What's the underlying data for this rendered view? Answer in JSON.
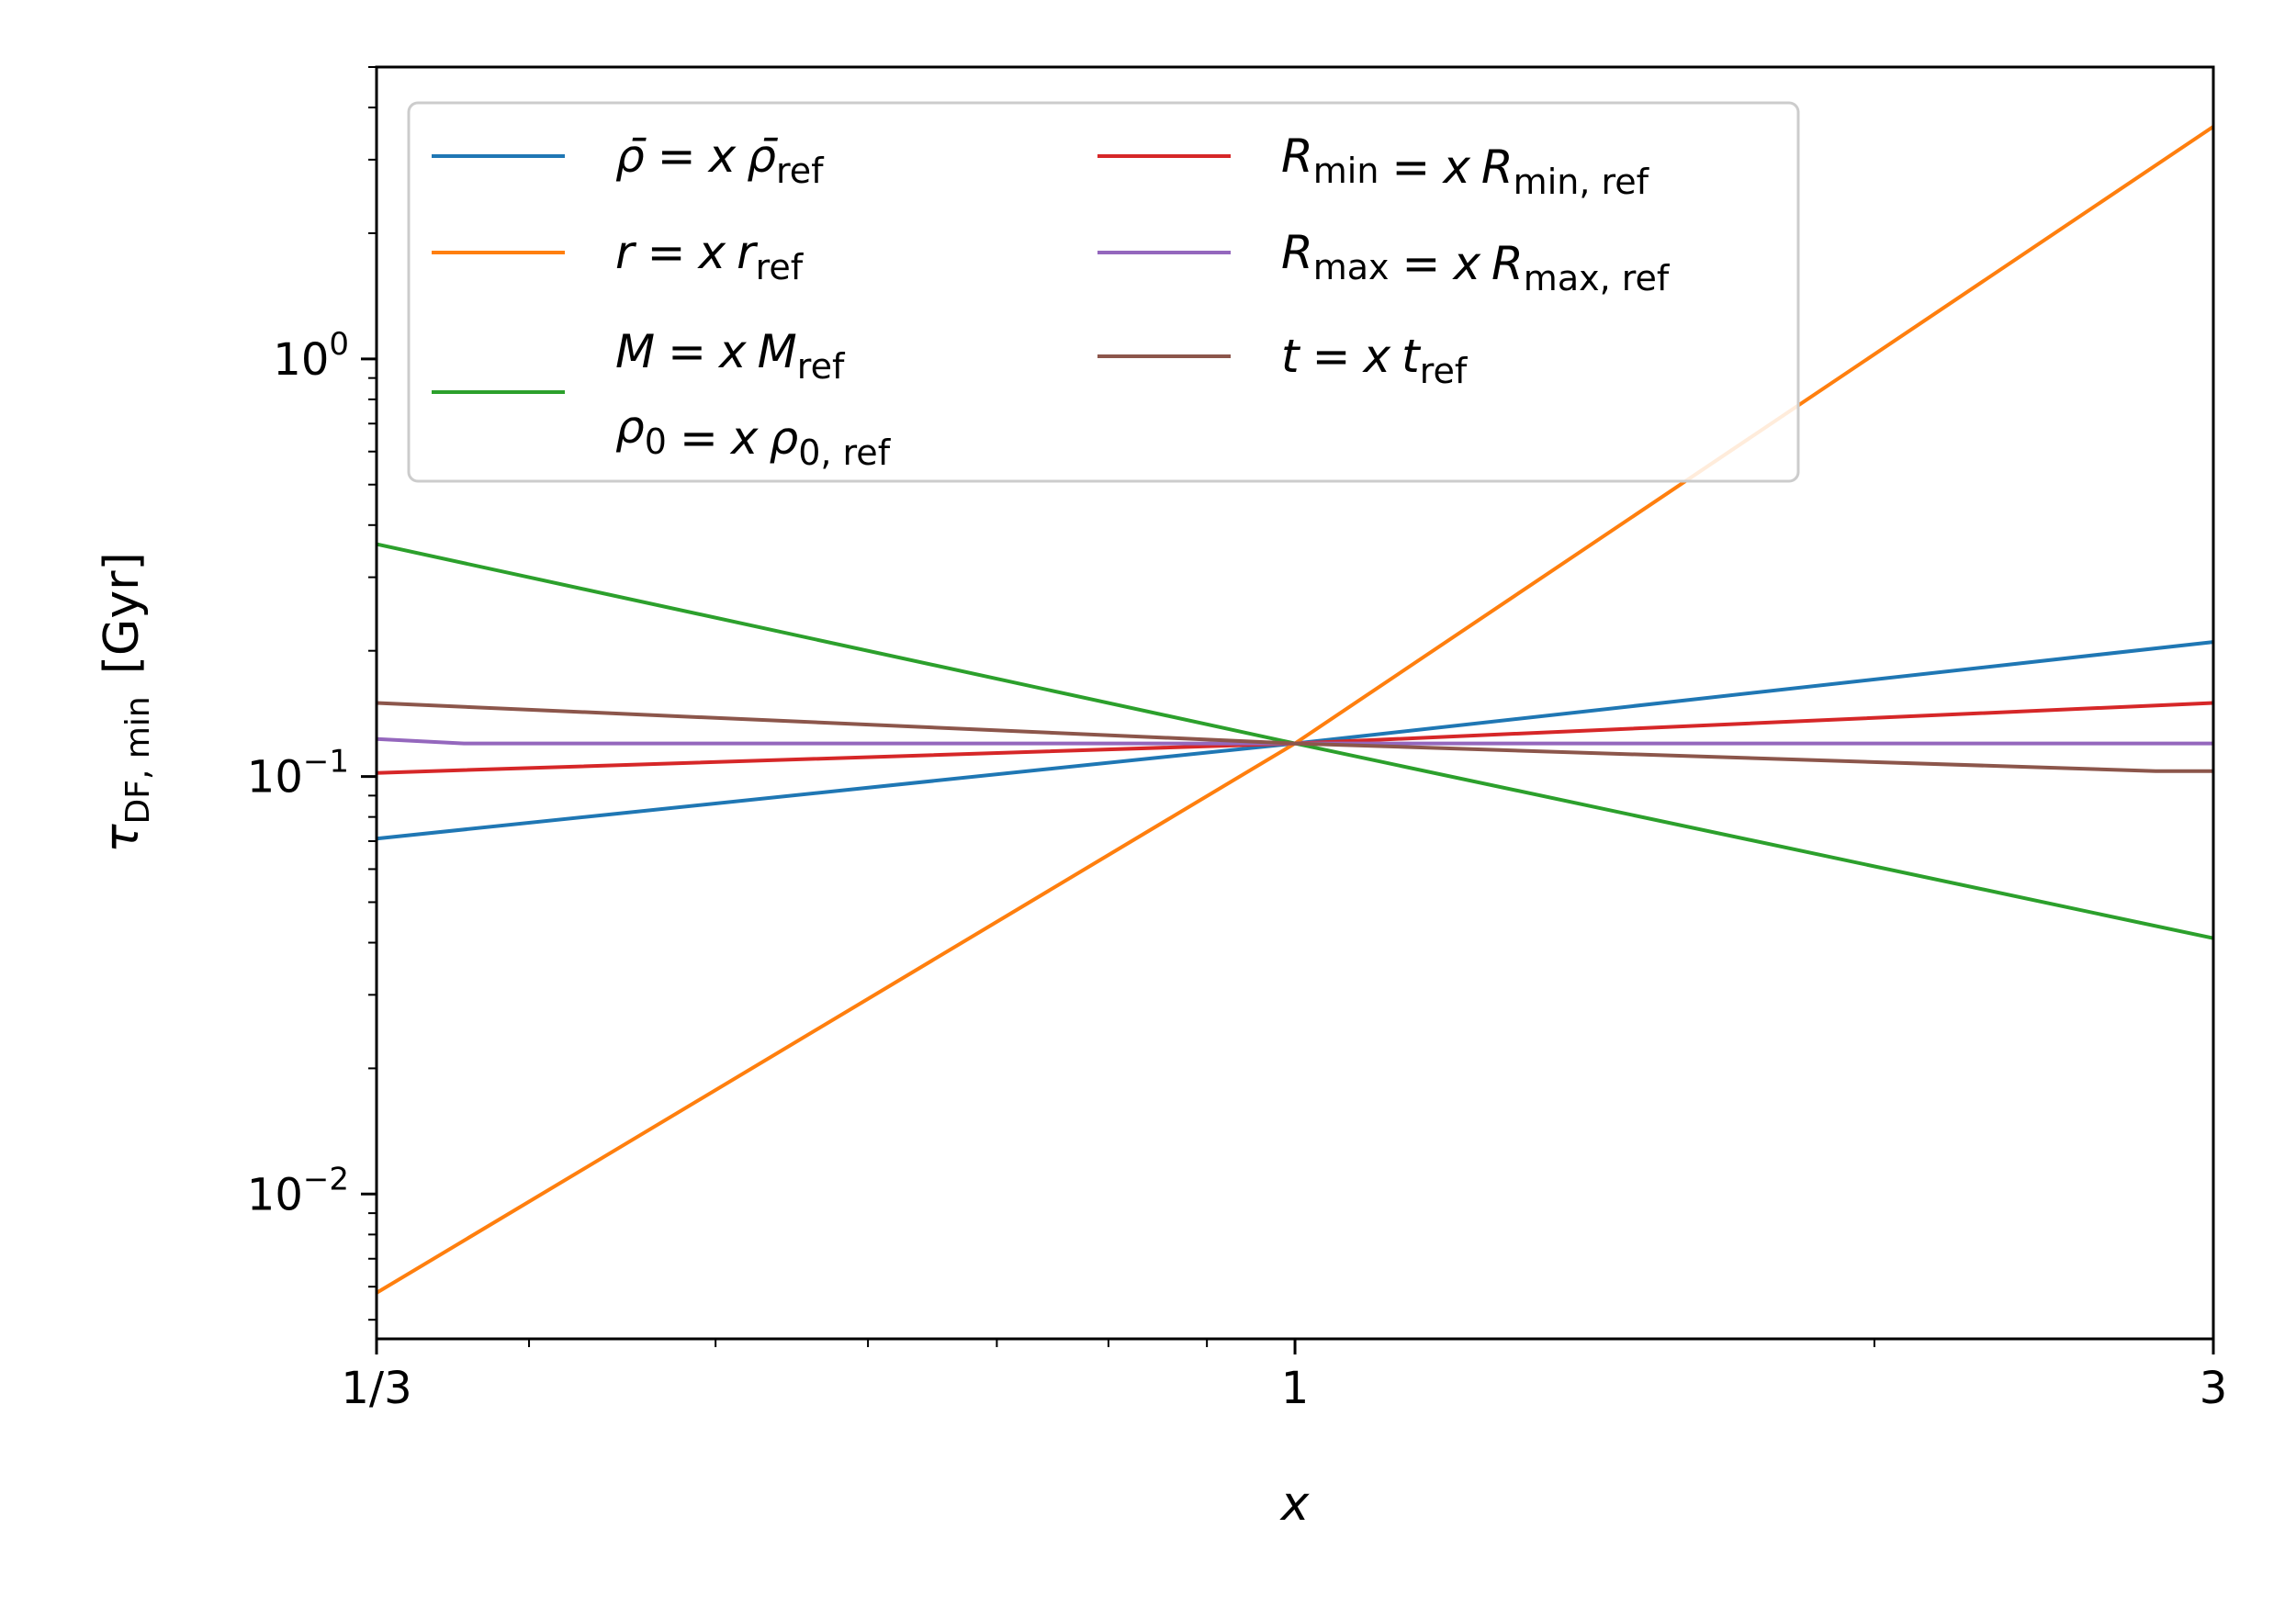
{
  "chart_data": {
    "type": "line",
    "xlabel": "x",
    "ylabel_main": "τ",
    "ylabel_sub": "DF, min",
    "ylabel_unit": "[Gyr]",
    "x_scale": "log",
    "y_scale": "log",
    "xlim": [
      0.3333,
      3
    ],
    "ylim": [
      0.0045,
      5.0
    ],
    "x_ticks": [
      {
        "value": 0.3333,
        "label": "1/3"
      },
      {
        "value": 1,
        "label": "1"
      },
      {
        "value": 3,
        "label": "3"
      }
    ],
    "y_ticks": [
      {
        "value": 0.01,
        "base": "10",
        "exp": "−2"
      },
      {
        "value": 0.1,
        "base": "10",
        "exp": "−1"
      },
      {
        "value": 1,
        "base": "10",
        "exp": "0"
      }
    ],
    "legend_position": "upper-left, two columns",
    "series": [
      {
        "id": "rhobar",
        "color": "#1f77b4",
        "points": [
          [
            0.3333,
            0.071
          ],
          [
            1,
            0.12
          ],
          [
            3,
            0.21
          ]
        ]
      },
      {
        "id": "r",
        "color": "#ff7f0e",
        "points": [
          [
            0.3333,
            0.0058
          ],
          [
            1,
            0.12
          ],
          [
            3,
            3.6
          ]
        ]
      },
      {
        "id": "M",
        "color": "#2ca02c",
        "points": [
          [
            0.3333,
            0.36
          ],
          [
            1,
            0.12
          ],
          [
            3,
            0.041
          ]
        ]
      },
      {
        "id": "Rmin",
        "color": "#d62728",
        "points": [
          [
            0.3333,
            0.102
          ],
          [
            1,
            0.12
          ],
          [
            3,
            0.15
          ]
        ]
      },
      {
        "id": "Rmax",
        "color": "#9467bd",
        "points": [
          [
            0.3333,
            0.123
          ],
          [
            0.37,
            0.12
          ],
          [
            1,
            0.12
          ],
          [
            3,
            0.12
          ]
        ]
      },
      {
        "id": "t",
        "color": "#8c564b",
        "points": [
          [
            0.3333,
            0.15
          ],
          [
            1,
            0.12
          ],
          [
            2.8,
            0.103
          ],
          [
            3,
            0.103
          ]
        ]
      }
    ],
    "legend": [
      {
        "series": "rhobar",
        "a": "ρ̄",
        "a_sub": "",
        "b": "ρ̄",
        "b_sub": "ref"
      },
      {
        "series": "r",
        "a": "r",
        "a_sub": "",
        "b": "r",
        "b_sub": "ref"
      },
      {
        "series": "M",
        "a": "M",
        "a_sub": "",
        "b": "M",
        "b_sub": "ref",
        "a2": "ρ",
        "a2_sub": "0",
        "b2": "ρ",
        "b2_sub": "0, ref"
      },
      {
        "series": "Rmin",
        "a": "R",
        "a_sub": "min",
        "b": "R",
        "b_sub": "min, ref"
      },
      {
        "series": "Rmax",
        "a": "R",
        "a_sub": "max",
        "b": "R",
        "b_sub": "max, ref"
      },
      {
        "series": "t",
        "a": "t",
        "a_sub": "",
        "b": "t",
        "b_sub": "ref"
      }
    ],
    "equation_parts": {
      "equals": "=",
      "factor": "x"
    }
  }
}
